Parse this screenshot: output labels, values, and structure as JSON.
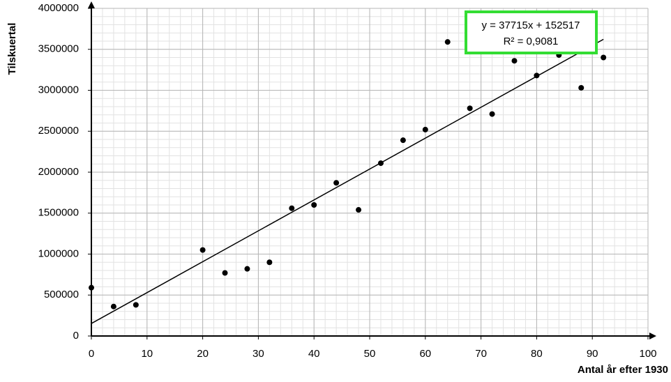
{
  "chart_data": {
    "type": "scatter",
    "x_label": "Antal år efter 1930",
    "y_label": "Tilskuertal",
    "x": [
      0,
      4,
      8,
      20,
      24,
      28,
      32,
      36,
      40,
      44,
      48,
      52,
      56,
      60,
      64,
      68,
      72,
      76,
      80,
      84,
      88,
      92
    ],
    "values": [
      590000,
      360000,
      380000,
      1050000,
      770000,
      820000,
      900000,
      1560000,
      1600000,
      1870000,
      1540000,
      2110000,
      2390000,
      2520000,
      3590000,
      2780000,
      2710000,
      3360000,
      3180000,
      3430000,
      3030000,
      3400000
    ],
    "color": "#000000",
    "xlim": [
      0,
      100
    ],
    "xticks": [
      0,
      10,
      20,
      30,
      40,
      50,
      60,
      70,
      80,
      90,
      100
    ],
    "ylim": [
      0,
      4000000
    ],
    "yticks": [
      0,
      500000,
      1000000,
      1500000,
      2000000,
      2500000,
      3000000,
      3500000,
      4000000
    ],
    "grid": true,
    "minor_grid": true,
    "trendline": {
      "slope": 37715,
      "intercept": 152517,
      "color": "#000000",
      "equation": "y = 37715x + 152517",
      "r2": "R² = 0,9081",
      "box_color": "#33dd33"
    }
  }
}
